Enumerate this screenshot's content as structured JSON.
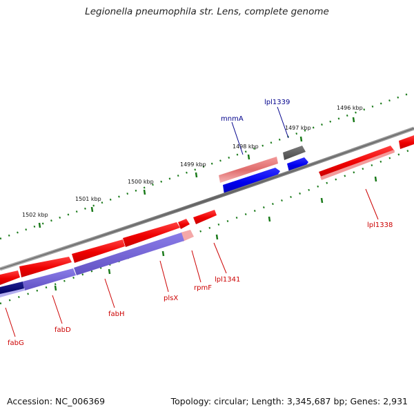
{
  "title": "Legionella pneumophila str. Lens, complete genome",
  "footer": {
    "accession": "Accession: NC_006369",
    "summary": "Topology: circular; Length: 3,345,687 bp; Genes: 2,931"
  },
  "colors": {
    "backbone": "#808080",
    "tick": "#1a7a1a",
    "forward_cds": "#ee0000",
    "forward_cds_light": "#f0a0a0",
    "forward_rrna": "#606060",
    "reverse_cds": "#0000ee",
    "reverse_cds_light": "#8080e0",
    "reverse_dark": "#000080",
    "label_reverse": "#00008b",
    "label_forward": "#cc0000"
  },
  "ticks": [
    "1496 kbp",
    "1497 kbp",
    "1498 kbp",
    "1499 kbp",
    "1500 kbp",
    "1501 kbp",
    "1502 kbp"
  ],
  "gene_labels": {
    "lpl1339": "lpl1339",
    "mnmA": "mnmA",
    "lpl1338": "lpl1338",
    "lpl1341": "lpl1341",
    "rpmF": "rpmF",
    "plsX": "plsX",
    "fabH": "fabH",
    "fabD": "fabD",
    "fabG": "fabG"
  }
}
